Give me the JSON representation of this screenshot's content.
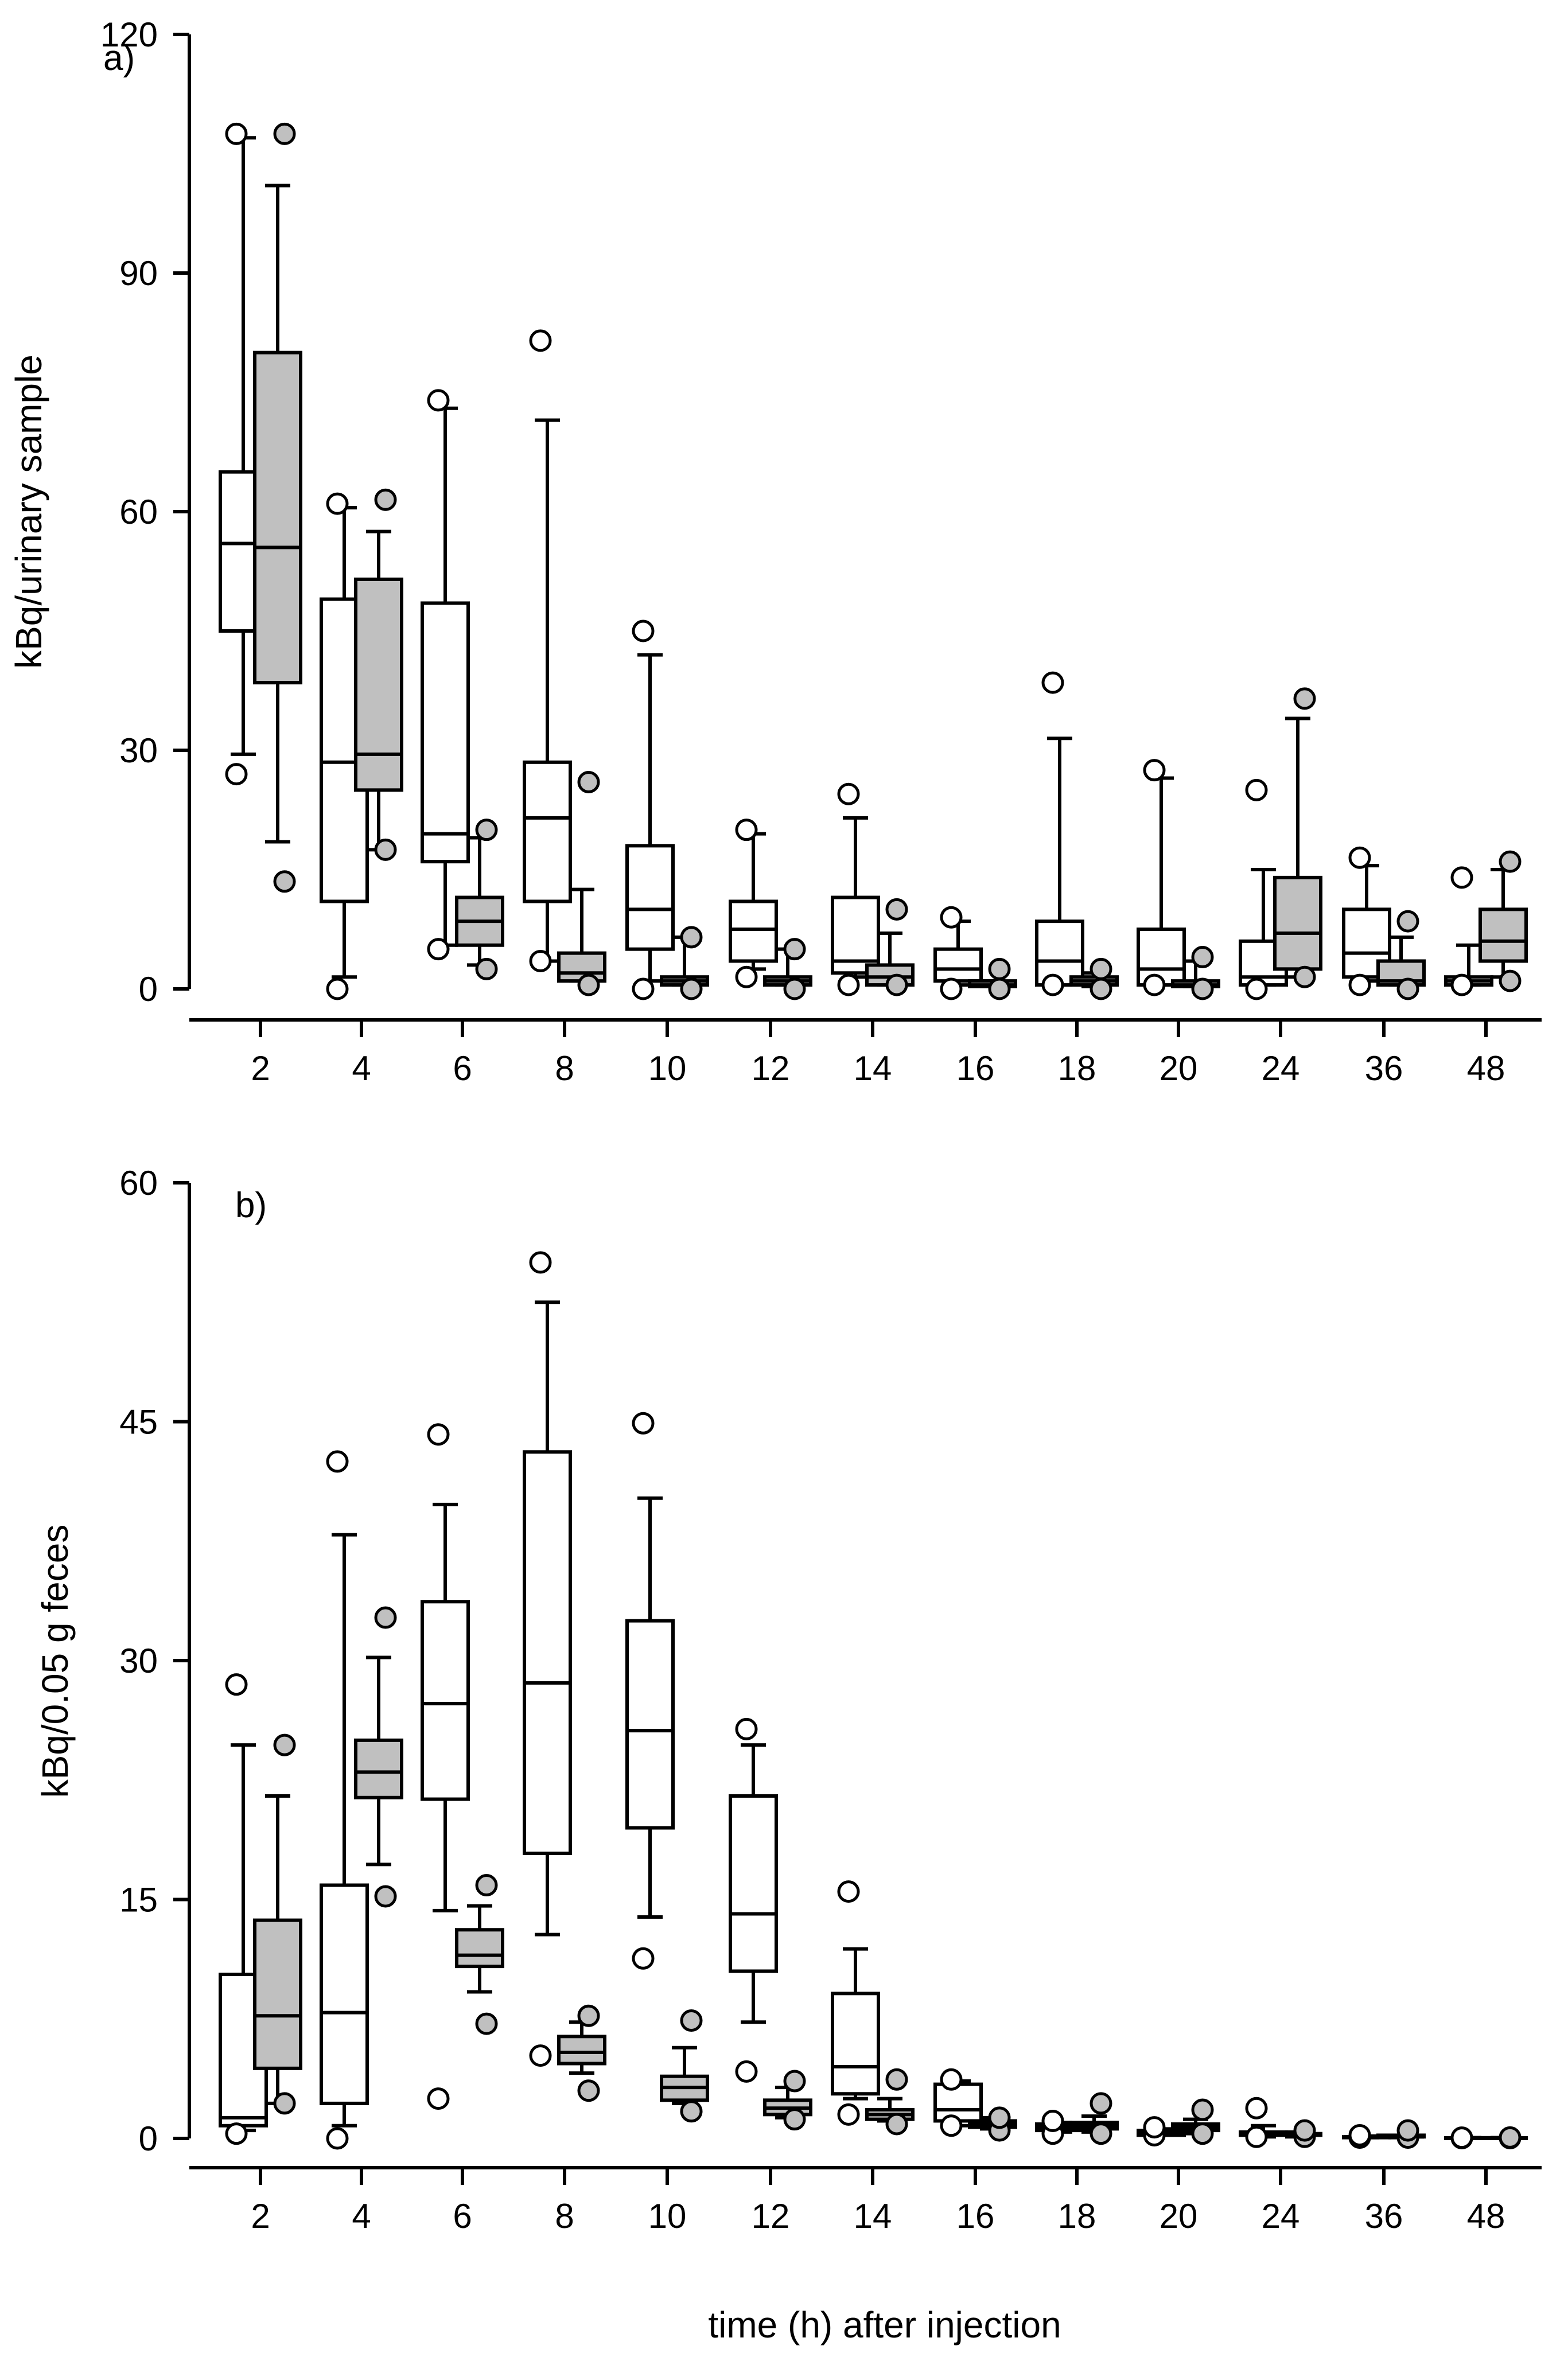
{
  "figure": {
    "xlabel": "time (h) after injection"
  },
  "colors": {
    "group_open_fill": "#ffffff",
    "group_filled_fill": "#c0c0c0",
    "stroke": "#000000"
  },
  "chart_data": [
    {
      "type": "box",
      "panel_label": "a)",
      "ylabel": "kBq/urinary sample",
      "ylim": [
        0,
        120
      ],
      "yticks": [
        "0",
        "30",
        "60",
        "90",
        "120"
      ],
      "categories": [
        "2",
        "4",
        "6",
        "8",
        "10",
        "12",
        "14",
        "16",
        "18",
        "20",
        "24",
        "36",
        "48"
      ],
      "series": [
        {
          "name": "white boxes",
          "fill": "open",
          "boxes": [
            {
              "wlo": 29.5,
              "q1": 45,
              "med": 56,
              "q3": 65,
              "whi": 107,
              "outliers": [
                27,
                107.5
              ]
            },
            {
              "wlo": 1.5,
              "q1": 11,
              "med": 28.5,
              "q3": 49,
              "whi": 60.5,
              "outliers": [
                0,
                61
              ]
            },
            {
              "wlo": 5.5,
              "q1": 16,
              "med": 19.5,
              "q3": 48.5,
              "whi": 73,
              "outliers": [
                5,
                74
              ]
            },
            {
              "wlo": 3.5,
              "q1": 11,
              "med": 21.5,
              "q3": 28.5,
              "whi": 71.5,
              "outliers": [
                3.5,
                81.5
              ]
            },
            {
              "wlo": 1,
              "q1": 5,
              "med": 10,
              "q3": 18,
              "whi": 42,
              "outliers": [
                0,
                45
              ]
            },
            {
              "wlo": 2.5,
              "q1": 3.5,
              "med": 7.5,
              "q3": 11,
              "whi": 19.5,
              "outliers": [
                1.5,
                20
              ]
            },
            {
              "wlo": 1.5,
              "q1": 2,
              "med": 3.5,
              "q3": 11.5,
              "whi": 21.5,
              "outliers": [
                0.5,
                24.5
              ]
            },
            {
              "wlo": 0.5,
              "q1": 1,
              "med": 2.5,
              "q3": 5,
              "whi": 8.5,
              "outliers": [
                0,
                9
              ]
            },
            {
              "wlo": 0.5,
              "q1": 0.5,
              "med": 3.5,
              "q3": 8.5,
              "whi": 31.5,
              "outliers": [
                0.5,
                38.5
              ]
            },
            {
              "wlo": 0.5,
              "q1": 0.5,
              "med": 2.5,
              "q3": 7.5,
              "whi": 26.5,
              "outliers": [
                0.5,
                27.5
              ]
            },
            {
              "wlo": 0.5,
              "q1": 0.5,
              "med": 1.5,
              "q3": 6,
              "whi": 15,
              "outliers": [
                0,
                25
              ]
            },
            {
              "wlo": 1,
              "q1": 1.5,
              "med": 4.5,
              "q3": 10,
              "whi": 15.5,
              "outliers": [
                0.5,
                16.5
              ]
            },
            {
              "wlo": 0.5,
              "q1": 0.5,
              "med": 1,
              "q3": 1.5,
              "whi": 5.5,
              "outliers": [
                0.5,
                14
              ]
            }
          ]
        },
        {
          "name": "grey boxes",
          "fill": "shaded",
          "boxes": [
            {
              "wlo": 18.5,
              "q1": 38.5,
              "med": 55.5,
              "q3": 80,
              "whi": 101,
              "outliers": [
                13.5,
                107.5
              ]
            },
            {
              "wlo": 17.5,
              "q1": 25,
              "med": 29.5,
              "q3": 51.5,
              "whi": 57.5,
              "outliers": [
                17.5,
                61.5
              ]
            },
            {
              "wlo": 3,
              "q1": 5.5,
              "med": 8.5,
              "q3": 11.5,
              "whi": 19,
              "outliers": [
                2.5,
                20
              ]
            },
            {
              "wlo": 1,
              "q1": 1,
              "med": 2,
              "q3": 4.5,
              "whi": 12.5,
              "outliers": [
                0.5,
                26
              ]
            },
            {
              "wlo": 0.5,
              "q1": 0.5,
              "med": 1,
              "q3": 1.5,
              "whi": 6.5,
              "outliers": [
                0,
                6.5
              ]
            },
            {
              "wlo": 0.5,
              "q1": 0.5,
              "med": 1,
              "q3": 1.5,
              "whi": 5,
              "outliers": [
                0,
                5
              ]
            },
            {
              "wlo": 0.5,
              "q1": 0.5,
              "med": 1.5,
              "q3": 3,
              "whi": 7,
              "outliers": [
                0.5,
                10
              ]
            },
            {
              "wlo": 0.3,
              "q1": 0.3,
              "med": 0.5,
              "q3": 1,
              "whi": 1,
              "outliers": [
                0,
                2.5
              ]
            },
            {
              "wlo": 0.3,
              "q1": 0.5,
              "med": 1,
              "q3": 1.5,
              "whi": 2,
              "outliers": [
                0,
                2.5
              ]
            },
            {
              "wlo": 0.3,
              "q1": 0.3,
              "med": 0.5,
              "q3": 1,
              "whi": 3.5,
              "outliers": [
                0,
                4
              ]
            },
            {
              "wlo": 1.5,
              "q1": 2.5,
              "med": 7,
              "q3": 14,
              "whi": 34,
              "outliers": [
                1.5,
                36.5
              ]
            },
            {
              "wlo": 0.5,
              "q1": 0.5,
              "med": 1,
              "q3": 3.5,
              "whi": 6.5,
              "outliers": [
                0,
                8.5
              ]
            },
            {
              "wlo": 1.5,
              "q1": 3.5,
              "med": 6,
              "q3": 10,
              "whi": 15,
              "outliers": [
                1,
                16
              ]
            }
          ]
        }
      ]
    },
    {
      "type": "box",
      "panel_label": "b)",
      "ylabel": "kBq/0.05 g feces",
      "ylim": [
        0,
        60
      ],
      "yticks": [
        "0",
        "15",
        "30",
        "45",
        "60"
      ],
      "categories": [
        "2",
        "4",
        "6",
        "8",
        "10",
        "12",
        "14",
        "16",
        "18",
        "20",
        "24",
        "36",
        "48"
      ],
      "series": [
        {
          "name": "white boxes",
          "fill": "open",
          "boxes": [
            {
              "wlo": 0.5,
              "q1": 0.8,
              "med": 1.3,
              "q3": 10.3,
              "whi": 24.7,
              "outliers": [
                0.3,
                28.5
              ]
            },
            {
              "wlo": 0.8,
              "q1": 2.2,
              "med": 7.9,
              "q3": 15.9,
              "whi": 37.9,
              "outliers": [
                0,
                42.5
              ]
            },
            {
              "wlo": 14.3,
              "q1": 21.3,
              "med": 27.3,
              "q3": 33.7,
              "whi": 39.8,
              "outliers": [
                2.5,
                44.2
              ]
            },
            {
              "wlo": 12.8,
              "q1": 17.9,
              "med": 28.6,
              "q3": 43.1,
              "whi": 52.5,
              "outliers": [
                5.2,
                55
              ]
            },
            {
              "wlo": 13.9,
              "q1": 19.5,
              "med": 25.6,
              "q3": 32.5,
              "whi": 40.2,
              "outliers": [
                11.3,
                44.9
              ]
            },
            {
              "wlo": 7.3,
              "q1": 10.5,
              "med": 14.1,
              "q3": 21.5,
              "whi": 24.7,
              "outliers": [
                4.2,
                25.7
              ]
            },
            {
              "wlo": 2.5,
              "q1": 2.8,
              "med": 4.5,
              "q3": 9.1,
              "whi": 11.9,
              "outliers": [
                1.5,
                15.5
              ]
            },
            {
              "wlo": 0.8,
              "q1": 1.1,
              "med": 1.8,
              "q3": 3.4,
              "whi": 3.6,
              "outliers": [
                0.8,
                3.7
              ]
            },
            {
              "wlo": 0.4,
              "q1": 0.5,
              "med": 0.7,
              "q3": 0.9,
              "whi": 1,
              "outliers": [
                0.3,
                1.1
              ]
            },
            {
              "wlo": 0.2,
              "q1": 0.2,
              "med": 0.3,
              "q3": 0.5,
              "whi": 0.6,
              "outliers": [
                0.2,
                0.7
              ]
            },
            {
              "wlo": 0.1,
              "q1": 0.2,
              "med": 0.3,
              "q3": 0.4,
              "whi": 0.8,
              "outliers": [
                0.1,
                1.9
              ]
            },
            {
              "wlo": 0.05,
              "q1": 0.05,
              "med": 0.1,
              "q3": 0.1,
              "whi": 0.15,
              "outliers": [
                0.05,
                0.2
              ]
            },
            {
              "wlo": 0.02,
              "q1": 0.02,
              "med": 0.03,
              "q3": 0.04,
              "whi": 0.05,
              "outliers": [
                0.02,
                0.05
              ]
            }
          ]
        },
        {
          "name": "grey boxes",
          "fill": "shaded",
          "boxes": [
            {
              "wlo": 2.2,
              "q1": 4.4,
              "med": 7.7,
              "q3": 13.7,
              "whi": 21.5,
              "outliers": [
                2.2,
                24.7
              ]
            },
            {
              "wlo": 17.2,
              "q1": 21.4,
              "med": 23,
              "q3": 25,
              "whi": 30.2,
              "outliers": [
                15.2,
                32.7
              ]
            },
            {
              "wlo": 9.2,
              "q1": 10.8,
              "med": 11.5,
              "q3": 13.1,
              "whi": 14.6,
              "outliers": [
                7.2,
                15.9
              ]
            },
            {
              "wlo": 4.1,
              "q1": 4.7,
              "med": 5.4,
              "q3": 6.4,
              "whi": 7.3,
              "outliers": [
                3,
                7.7
              ]
            },
            {
              "wlo": 2.2,
              "q1": 2.4,
              "med": 3.2,
              "q3": 3.9,
              "whi": 5.7,
              "outliers": [
                1.7,
                7.4
              ]
            },
            {
              "wlo": 1.3,
              "q1": 1.5,
              "med": 1.9,
              "q3": 2.4,
              "whi": 3.2,
              "outliers": [
                1.2,
                3.6
              ]
            },
            {
              "wlo": 1.1,
              "q1": 1.2,
              "med": 1.5,
              "q3": 1.8,
              "whi": 2.5,
              "outliers": [
                0.9,
                3.7
              ]
            },
            {
              "wlo": 0.6,
              "q1": 0.7,
              "med": 0.9,
              "q3": 1.1,
              "whi": 1.3,
              "outliers": [
                0.5,
                1.3
              ]
            },
            {
              "wlo": 0.4,
              "q1": 0.6,
              "med": 0.8,
              "q3": 1,
              "whi": 1.4,
              "outliers": [
                0.3,
                2.2
              ]
            },
            {
              "wlo": 0.3,
              "q1": 0.5,
              "med": 0.7,
              "q3": 0.9,
              "whi": 1.2,
              "outliers": [
                0.3,
                1.8
              ]
            },
            {
              "wlo": 0.1,
              "q1": 0.2,
              "med": 0.2,
              "q3": 0.3,
              "whi": 0.4,
              "outliers": [
                0.1,
                0.5
              ]
            },
            {
              "wlo": 0.05,
              "q1": 0.1,
              "med": 0.1,
              "q3": 0.2,
              "whi": 0.2,
              "outliers": [
                0.05,
                0.5
              ]
            },
            {
              "wlo": 0.02,
              "q1": 0.02,
              "med": 0.03,
              "q3": 0.04,
              "whi": 0.05,
              "outliers": [
                0.02,
                0.06
              ]
            }
          ]
        }
      ]
    }
  ]
}
